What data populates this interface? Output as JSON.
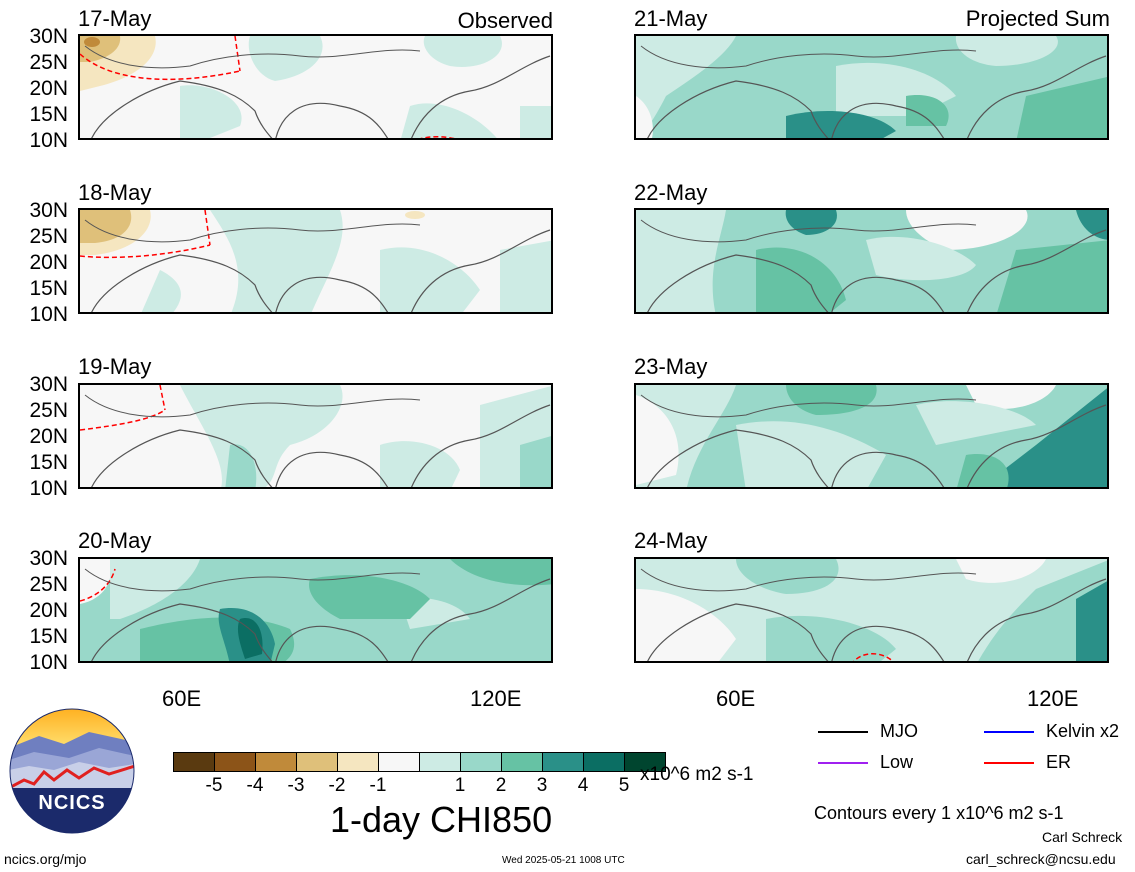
{
  "observed": {
    "label": "Observed",
    "dates": [
      "17-May",
      "18-May",
      "19-May",
      "20-May"
    ]
  },
  "projected": {
    "label": "Projected Sum",
    "dates": [
      "21-May",
      "22-May",
      "23-May",
      "24-May"
    ]
  },
  "lat_labels": [
    "30N",
    "25N",
    "20N",
    "15N",
    "10N"
  ],
  "lon_labels": [
    "60E",
    "120E"
  ],
  "colorbar": {
    "colors": [
      "#5a3a10",
      "#8c5418",
      "#c08a3a",
      "#dfc07a",
      "#f5e6c0",
      "#f7f7f7",
      "#cdebe4",
      "#99d8c9",
      "#66c2a4",
      "#2a9088",
      "#0b6e63",
      "#00452f"
    ],
    "ticks": [
      "-5",
      "-4",
      "-3",
      "-2",
      "-1",
      "1",
      "2",
      "3",
      "4",
      "5"
    ],
    "units": "x10^6 m2 s-1",
    "title": "1-day CHI850"
  },
  "legend": {
    "items": [
      {
        "label": "MJO",
        "color": "#000000"
      },
      {
        "label": "Kelvin x2",
        "color": "#0000ff"
      },
      {
        "label": "Low",
        "color": "#a020f0"
      },
      {
        "label": "ER",
        "color": "#ff0000"
      }
    ],
    "contours": "Contours every 1 x10^6 m2 s-1"
  },
  "logo": {
    "text": "NCICS"
  },
  "footer": {
    "url": "ncics.org/mjo",
    "timestamp": "Wed 2025-05-21 1008 UTC",
    "author": "Carl Schreck",
    "email": "carl_schreck@ncsu.edu"
  }
}
